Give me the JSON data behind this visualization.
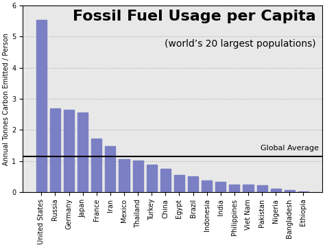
{
  "title": "Fossil Fuel Usage per Capita",
  "subtitle": "(world’s 20 largest populations)",
  "ylabel": "Annual Tonnes Carbon Emitted / Person",
  "global_average": 1.15,
  "global_average_label": "Global Average",
  "ylim": [
    0,
    6
  ],
  "yticks": [
    0,
    1,
    2,
    3,
    4,
    5,
    6
  ],
  "bar_color": "#7b7fc4",
  "plot_bg_color": "#e8e8e8",
  "fig_bg_color": "#ffffff",
  "countries": [
    "United States",
    "Russia",
    "Germany",
    "Japan",
    "France",
    "Iran",
    "Mexico",
    "Thailand",
    "Turkey",
    "China",
    "Egypt",
    "Brazil",
    "Indonesia",
    "India",
    "Philippines",
    "Viet Nam",
    "Pakistan",
    "Nigeria",
    "Bangladesh",
    "Ethiopia"
  ],
  "values": [
    5.55,
    2.7,
    2.65,
    2.55,
    1.72,
    1.48,
    1.05,
    1.02,
    0.88,
    0.75,
    0.55,
    0.5,
    0.37,
    0.32,
    0.25,
    0.23,
    0.21,
    0.1,
    0.07,
    0.02
  ],
  "title_fontsize": 16,
  "subtitle_fontsize": 10,
  "ylabel_fontsize": 7,
  "tick_label_fontsize": 7,
  "grid_color": "#aaaaaa",
  "grid_linestyle": ":",
  "global_avg_fontsize": 8
}
